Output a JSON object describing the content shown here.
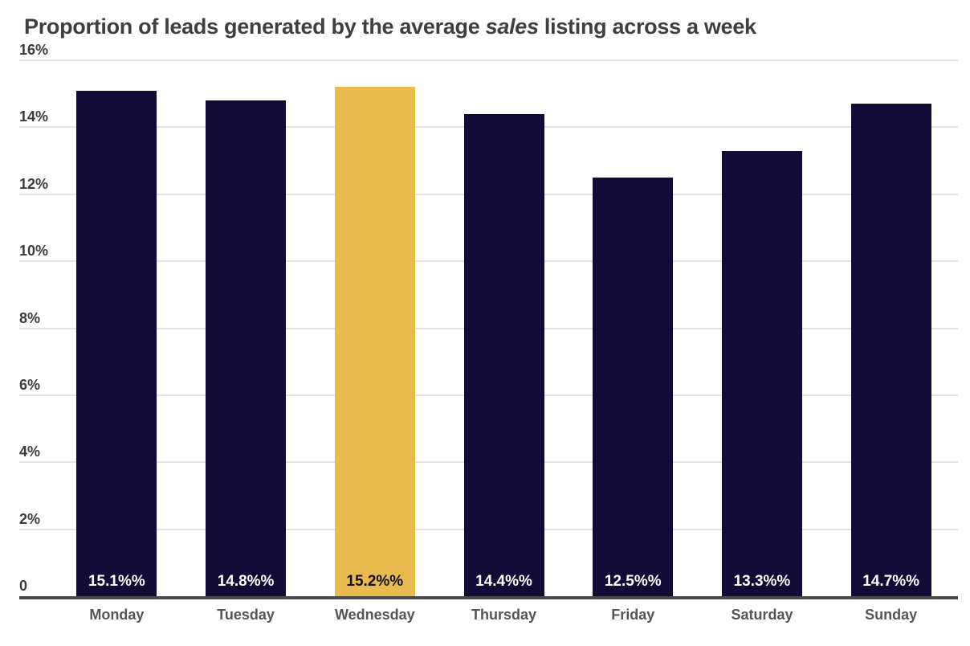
{
  "title_parts": {
    "before": "Proportion of leads generated by the average ",
    "italic": "sales",
    "after": " listing across a week"
  },
  "chart_data": {
    "type": "bar",
    "title": "Proportion of leads generated by the average sales listing across a week",
    "categories": [
      "Monday",
      "Tuesday",
      "Wednesday",
      "Thursday",
      "Friday",
      "Saturday",
      "Sunday"
    ],
    "values": [
      15.1,
      14.8,
      15.2,
      14.4,
      12.5,
      13.3,
      14.7
    ],
    "bar_labels": [
      "15.1%%",
      "14.8%%",
      "15.2%%",
      "14.4%%",
      "12.5%%",
      "13.3%%",
      "14.7%%"
    ],
    "highlight_index": 2,
    "highlighted_category": "Wednesday",
    "xlabel": "",
    "ylabel": "",
    "ylim": [
      0,
      16
    ],
    "grid": true,
    "legend": "none",
    "yticks": [
      {
        "value": 0,
        "label": "0"
      },
      {
        "value": 2,
        "label": "2%"
      },
      {
        "value": 4,
        "label": "4%"
      },
      {
        "value": 6,
        "label": "6%"
      },
      {
        "value": 8,
        "label": "8%"
      },
      {
        "value": 10,
        "label": "10%"
      },
      {
        "value": 12,
        "label": "12%"
      },
      {
        "value": 14,
        "label": "14%"
      },
      {
        "value": 16,
        "label": "16%"
      }
    ],
    "colors": {
      "bar": "#110b36",
      "highlight": "#e9ba4d",
      "grid": "#e3e3e3",
      "axis": "#4a4a4a",
      "title_text": "#3f3f3f",
      "tick_text": "#3b3b3b",
      "x_label_text": "#555555",
      "value_label": "#ffffff",
      "value_label_on_highlight": "#111111",
      "background": "#ffffff"
    }
  }
}
